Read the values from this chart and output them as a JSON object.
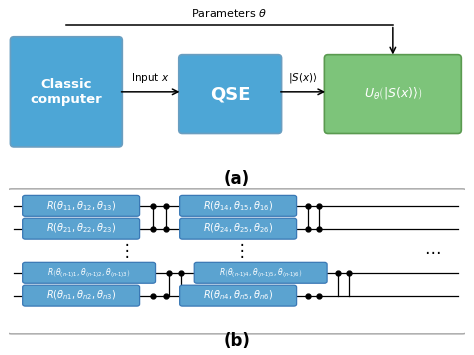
{
  "fig_width": 4.74,
  "fig_height": 3.55,
  "dpi": 100,
  "bg_color": "#ffffff",
  "blue_box_color": "#4da6d6",
  "green_box_color": "#7dc47a",
  "circuit_blue": "#5ba3d0",
  "panel_a_label": "(a)",
  "panel_b_label": "(b)",
  "classic_label": "Classic\ncomputer",
  "qse_label": "QSE",
  "uo_label": "$U_\\theta\\left(|S(x)\\rangle\\right)$",
  "params_label": "Parameters $\\theta$",
  "input_label": "Input $x$",
  "state_label": "$|S(x)\\rangle$",
  "r11": "$R\\left(\\theta_{11},\\theta_{12},\\theta_{13}\\right)$",
  "r14": "$R\\left(\\theta_{14},\\theta_{15},\\theta_{16}\\right)$",
  "r21": "$R\\left(\\theta_{21},\\theta_{22},\\theta_{23}\\right)$",
  "r24": "$R\\left(\\theta_{24},\\theta_{25},\\theta_{26}\\right)$",
  "rn11": "$R\\left(\\theta_{(n\\text{-}1)1},\\theta_{(n\\text{-}1)2},\\theta_{(n\\text{-}1)3}\\right)$",
  "rn14": "$R\\left(\\theta_{(n\\text{-}1)4},\\theta_{(n\\text{-}1)5},\\theta_{(n\\text{-}1)6}\\right)$",
  "rn1": "$R\\left(\\theta_{n1},\\theta_{n2},\\theta_{n3}\\right)$",
  "rn4": "$R\\left(\\theta_{n4},\\theta_{n5},\\theta_{n6}\\right)$"
}
